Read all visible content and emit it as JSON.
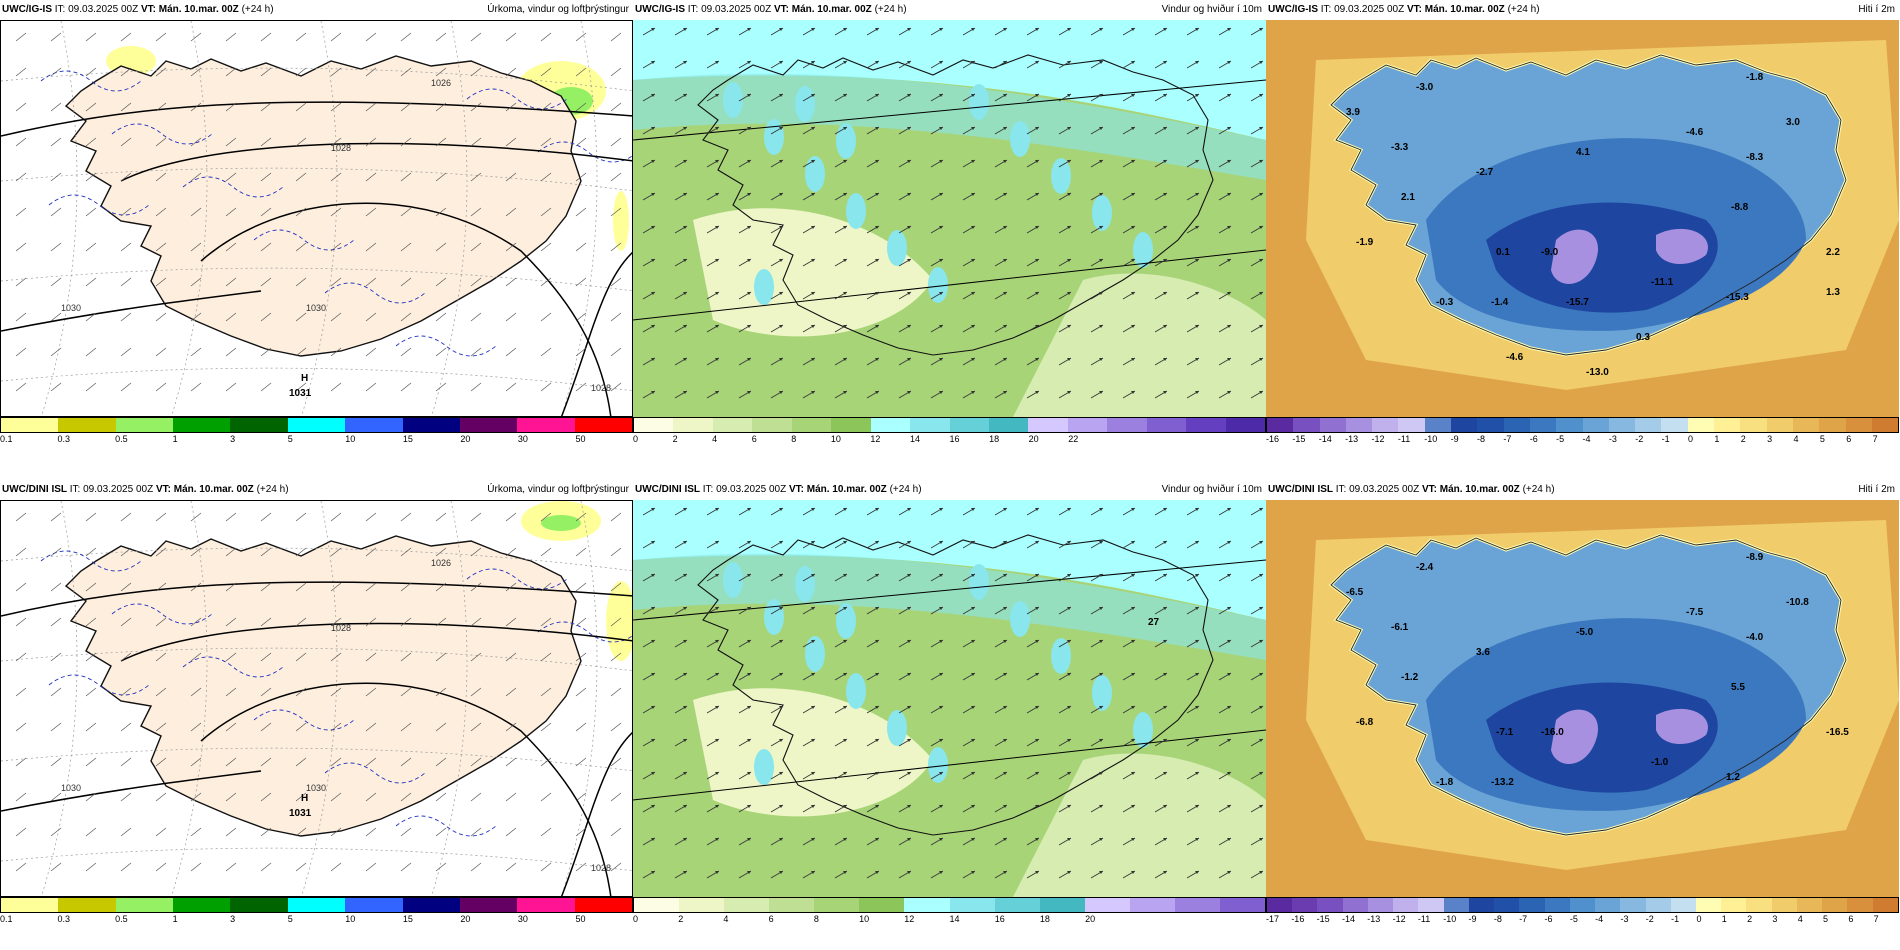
{
  "panels": [
    {
      "id": "p1",
      "type": "precip",
      "model": "UWC/IG-IS",
      "it": "IT: 09.03.2025 00Z",
      "vt": "VT: Mán. 10.mar. 00Z",
      "lead": "(+24 h)",
      "title": "Úrkoma, vindur og loftþrýstingur",
      "colorbar": {
        "colors": [
          "#ffff99",
          "#c8c800",
          "#96f064",
          "#00a000",
          "#006400",
          "#00ffff",
          "#3264ff",
          "#000080",
          "#640064",
          "#ff1493",
          "#ff0000"
        ],
        "labels": [
          "0.1",
          "0.3",
          "0.5",
          "1",
          "3",
          "5",
          "10",
          "15",
          "20",
          "30",
          "50"
        ]
      },
      "isobars": [
        "1026",
        "1028",
        "1030",
        "1030",
        "1028"
      ],
      "high": {
        "symbol": "H",
        "value": "1031"
      },
      "temps": []
    },
    {
      "id": "p2",
      "type": "wind",
      "model": "UWC/IG-IS",
      "it": "IT: 09.03.2025 00Z",
      "vt": "VT: Mán. 10.mar. 00Z",
      "lead": "(+24 h)",
      "title": "Vindur og hviður í 10m",
      "colorbar": {
        "colors": [
          "#fdfde6",
          "#eef6c8",
          "#d6ecb0",
          "#bfe094",
          "#a8d478",
          "#8cc55a",
          "#aaffff",
          "#88e6ec",
          "#66d0d8",
          "#44b8c0",
          "#d4c8ff",
          "#b8a4f0",
          "#9c80e0",
          "#8060d0",
          "#6440c0",
          "#4c2aa8"
        ],
        "labels": [
          "0",
          "2",
          "4",
          "6",
          "8",
          "10",
          "12",
          "14",
          "16",
          "18",
          "20",
          "22"
        ]
      },
      "gust_marker": "",
      "temps": []
    },
    {
      "id": "p3",
      "type": "temp",
      "model": "UWC/IG-IS",
      "it": "IT: 09.03.2025 00Z",
      "vt": "VT: Mán. 10.mar. 00Z",
      "lead": "(+24 h)",
      "title": "Hiti í 2m",
      "colorbar": {
        "colors": [
          "#5a2aa0",
          "#7850c0",
          "#9070d0",
          "#a890e0",
          "#c0b0ec",
          "#d0c8f4",
          "#5a82c8",
          "#1e46a0",
          "#2050a8",
          "#2c64b4",
          "#3c78c0",
          "#5090cc",
          "#6aa4d6",
          "#86b8e0",
          "#a4cce8",
          "#c4e0f0",
          "#fffcb4",
          "#fff096",
          "#f8e080",
          "#f0cc6a",
          "#e8b858",
          "#e0a448",
          "#d8903c",
          "#d07c30"
        ],
        "labels": [
          "-16",
          "-15",
          "-14",
          "-13",
          "-12",
          "-11",
          "-10",
          "-9",
          "-8",
          "-7",
          "-6",
          "-5",
          "-4",
          "-3",
          "-2",
          "-1",
          "0",
          "1",
          "2",
          "3",
          "4",
          "5",
          "6",
          "7"
        ]
      },
      "temps": [
        "-3.0",
        "3.9",
        "-3.3",
        "-2.7",
        "4.1",
        "-4.6",
        "-8.3",
        "3.0",
        "-1.8",
        "2.1",
        "-8.8",
        "-1.9",
        "0.1",
        "-9.0",
        "-11.1",
        "-15.3",
        "2.2",
        "-0.3",
        "-1.4",
        "-15.7",
        "0.3",
        "1.3",
        "-4.6",
        "-13.0"
      ]
    },
    {
      "id": "p4",
      "type": "precip",
      "model": "UWC/DINI ISL",
      "it": "IT: 09.03.2025 00Z",
      "vt": "VT: Mán. 10.mar. 00Z",
      "lead": "(+24 h)",
      "title": "Úrkoma, vindur og loftþrýstingur",
      "colorbar": {
        "colors": [
          "#ffff99",
          "#c8c800",
          "#96f064",
          "#00a000",
          "#006400",
          "#00ffff",
          "#3264ff",
          "#000080",
          "#640064",
          "#ff1493",
          "#ff0000"
        ],
        "labels": [
          "0.1",
          "0.3",
          "0.5",
          "1",
          "3",
          "5",
          "10",
          "15",
          "20",
          "30",
          "50"
        ]
      },
      "isobars": [
        "1026",
        "1028",
        "1030",
        "1030",
        "1028"
      ],
      "high": {
        "symbol": "H",
        "value": "1031"
      },
      "temps": []
    },
    {
      "id": "p5",
      "type": "wind",
      "model": "UWC/DINI ISL",
      "it": "IT: 09.03.2025 00Z",
      "vt": "VT: Mán. 10.mar. 00Z",
      "lead": "(+24 h)",
      "title": "Vindur og hviður í 10m",
      "colorbar": {
        "colors": [
          "#fdfde6",
          "#eef6c8",
          "#d6ecb0",
          "#bfe094",
          "#a8d478",
          "#8cc55a",
          "#aaffff",
          "#88e6ec",
          "#66d0d8",
          "#44b8c0",
          "#d4c8ff",
          "#b8a4f0",
          "#9c80e0",
          "#8060d0"
        ],
        "labels": [
          "0",
          "2",
          "4",
          "6",
          "8",
          "10",
          "12",
          "14",
          "16",
          "18",
          "20"
        ]
      },
      "gust_marker": "27",
      "temps": []
    },
    {
      "id": "p6",
      "type": "temp",
      "model": "UWC/DINI ISL",
      "it": "IT: 09.03.2025 00Z",
      "vt": "VT: Mán. 10.mar. 00Z",
      "lead": "(+24 h)",
      "title": "Hiti í 2m",
      "colorbar": {
        "colors": [
          "#5a2aa0",
          "#6a3cb0",
          "#7850c0",
          "#9070d0",
          "#a890e0",
          "#c0b0ec",
          "#d0c8f4",
          "#5a82c8",
          "#1e46a0",
          "#2050a8",
          "#2c64b4",
          "#3c78c0",
          "#5090cc",
          "#6aa4d6",
          "#86b8e0",
          "#a4cce8",
          "#c4e0f0",
          "#fffcb4",
          "#fff096",
          "#f8e080",
          "#f0cc6a",
          "#e8b858",
          "#e0a448",
          "#d8903c",
          "#d07c30"
        ],
        "labels": [
          "-17",
          "-16",
          "-15",
          "-14",
          "-13",
          "-12",
          "-11",
          "-10",
          "-9",
          "-8",
          "-7",
          "-6",
          "-5",
          "-4",
          "-3",
          "-2",
          "-1",
          "0",
          "1",
          "2",
          "3",
          "4",
          "5",
          "6",
          "7"
        ]
      },
      "temps": [
        "-2.4",
        "-6.5",
        "-6.1",
        "3.6",
        "-5.0",
        "-7.5",
        "-4.0",
        "-10.8",
        "-8.9",
        "-1.2",
        "5.5",
        "-6.8",
        "-7.1",
        "-16.0",
        "-1.0",
        "1.2",
        "-16.5",
        "-1.8",
        "-13.2"
      ]
    }
  ]
}
